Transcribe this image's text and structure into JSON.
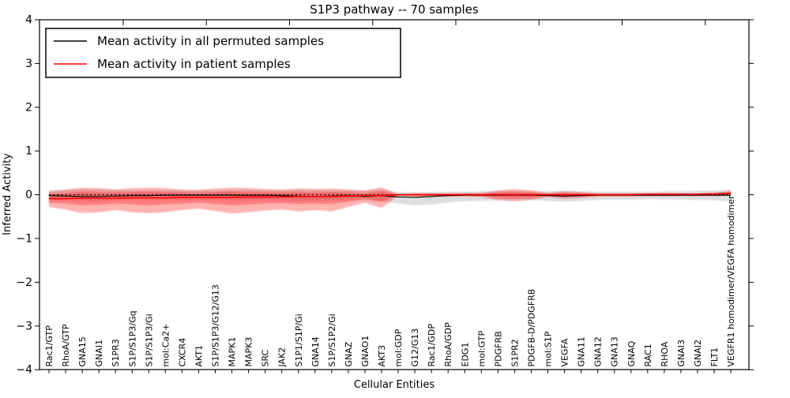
{
  "chart_data": {
    "type": "line",
    "title": "S1P3 pathway -- 70 samples",
    "xlabel": "Cellular Entities",
    "ylabel": "Inferred Activity",
    "ylim": [
      -4,
      4
    ],
    "yticks": [
      -4,
      -3,
      -2,
      -1,
      0,
      1,
      2,
      3,
      4
    ],
    "grid": false,
    "legend_position": "upper left",
    "legend": [
      {
        "label": "Mean activity in all permuted samples",
        "color": "#000000"
      },
      {
        "label": "Mean activity in patient samples",
        "color": "#ff0000"
      }
    ],
    "zero_line": {
      "value": 0,
      "style": "dotted",
      "color": "#000000"
    },
    "categories": [
      "Rac1/GTP",
      "RhoA/GTP",
      "GNA15",
      "GNAI1",
      "S1PR3",
      "S1P/S1P3/Gq",
      "S1P/S1P3/Gi",
      "mol:Ca2+",
      "CXCR4",
      "AKT1",
      "S1P/S1P3/G12/G13",
      "MAPK1",
      "MAPK3",
      "SRC",
      "JAK2",
      "S1P1/S1P/Gi",
      "GNA14",
      "S1P/S1P2/Gi",
      "GNAZ",
      "GNAO1",
      "AKT3",
      "mol:GDP",
      "G12/G13",
      "Rac1/GDP",
      "RhoA/GDP",
      "EDG1",
      "mol:GTP",
      "PDGFRB",
      "S1PR2",
      "PDGFB-D/PDGFRB",
      "mol:S1P",
      "VEGFA",
      "GNA11",
      "GNA12",
      "GNA13",
      "GNAQ",
      "RAC1",
      "RHOA",
      "GNAI3",
      "GNAI2",
      "FLT1",
      "VEGFR1 homodimer/VEGFA homodimer"
    ],
    "series": [
      {
        "name": "Mean activity in all permuted samples",
        "color": "#000000",
        "values": [
          -0.02,
          -0.03,
          -0.04,
          -0.04,
          -0.03,
          -0.02,
          -0.02,
          -0.01,
          -0.01,
          -0.01,
          -0.01,
          -0.01,
          -0.01,
          -0.01,
          -0.02,
          -0.03,
          -0.04,
          -0.03,
          -0.02,
          -0.04,
          -0.02,
          -0.05,
          -0.06,
          -0.04,
          -0.02,
          -0.01,
          -0.01,
          -0.01,
          -0.01,
          -0.01,
          -0.02,
          -0.03,
          -0.02,
          -0.01,
          -0.01,
          -0.01,
          -0.01,
          -0.01,
          -0.01,
          -0.01,
          -0.01,
          -0.01
        ]
      },
      {
        "name": "Mean activity in patient samples",
        "color": "#ff0000",
        "values": [
          -0.09,
          -0.09,
          -0.08,
          -0.08,
          -0.08,
          -0.07,
          -0.07,
          -0.07,
          -0.06,
          -0.06,
          -0.06,
          -0.06,
          -0.05,
          -0.05,
          -0.05,
          -0.04,
          -0.04,
          -0.04,
          -0.03,
          -0.02,
          -0.02,
          0,
          0,
          0,
          0,
          0,
          0,
          0,
          0,
          0,
          0,
          0,
          0,
          0,
          0,
          0,
          0.01,
          0.01,
          0.01,
          0.01,
          0.02,
          0.03
        ]
      }
    ],
    "bands": {
      "permuted": {
        "color": "#000000",
        "opacity": 0.13,
        "upper": [
          0.1,
          0.11,
          0.12,
          0.12,
          0.11,
          0.1,
          0.1,
          0.1,
          0.1,
          0.1,
          0.1,
          0.11,
          0.11,
          0.1,
          0.1,
          0.11,
          0.11,
          0.1,
          0.1,
          0.09,
          0.12,
          0.06,
          0.06,
          0.06,
          0.07,
          0.07,
          0.08,
          0.09,
          0.09,
          0.08,
          0.08,
          0.09,
          0.08,
          0.07,
          0.07,
          0.07,
          0.07,
          0.08,
          0.08,
          0.09,
          0.1,
          0.12
        ],
        "lower": [
          -0.12,
          -0.13,
          -0.14,
          -0.14,
          -0.13,
          -0.12,
          -0.12,
          -0.12,
          -0.12,
          -0.12,
          -0.12,
          -0.13,
          -0.13,
          -0.12,
          -0.12,
          -0.14,
          -0.14,
          -0.13,
          -0.12,
          -0.13,
          -0.15,
          -0.2,
          -0.24,
          -0.22,
          -0.18,
          -0.15,
          -0.14,
          -0.13,
          -0.12,
          -0.12,
          -0.14,
          -0.16,
          -0.14,
          -0.12,
          -0.11,
          -0.11,
          -0.1,
          -0.11,
          -0.11,
          -0.12,
          -0.13,
          -0.15
        ]
      },
      "patient_outer": {
        "color": "#ff0000",
        "opacity": 0.3,
        "upper": [
          0.08,
          0.12,
          0.16,
          0.15,
          0.12,
          0.15,
          0.16,
          0.15,
          0.12,
          0.11,
          0.14,
          0.16,
          0.15,
          0.13,
          0.12,
          0.14,
          0.13,
          0.14,
          0.12,
          0.1,
          0.17,
          0.01,
          0.03,
          0.03,
          0.03,
          0.03,
          0.04,
          0.1,
          0.13,
          0.1,
          0.04,
          0.08,
          0.06,
          0.03,
          0.03,
          0.03,
          0.03,
          0.04,
          0.03,
          0.03,
          0.04,
          0.09
        ],
        "lower": [
          -0.28,
          -0.34,
          -0.42,
          -0.4,
          -0.35,
          -0.4,
          -0.42,
          -0.4,
          -0.35,
          -0.32,
          -0.37,
          -0.43,
          -0.4,
          -0.36,
          -0.34,
          -0.38,
          -0.35,
          -0.38,
          -0.28,
          -0.18,
          -0.3,
          -0.02,
          -0.04,
          -0.04,
          -0.04,
          -0.04,
          -0.05,
          -0.12,
          -0.15,
          -0.12,
          -0.05,
          -0.09,
          -0.07,
          -0.04,
          -0.04,
          -0.04,
          -0.03,
          -0.04,
          -0.03,
          -0.03,
          -0.03,
          -0.02
        ]
      },
      "patient_inner": {
        "color": "#ff0000",
        "opacity": 0.3,
        "upper": [
          0.02,
          0.04,
          0.07,
          0.06,
          0.05,
          0.06,
          0.07,
          0.06,
          0.05,
          0.04,
          0.06,
          0.07,
          0.06,
          0.05,
          0.05,
          0.06,
          0.05,
          0.06,
          0.05,
          0.03,
          0.08,
          0.005,
          0.015,
          0.015,
          0.015,
          0.015,
          0.02,
          0.05,
          0.06,
          0.05,
          0.02,
          0.04,
          0.03,
          0.015,
          0.015,
          0.015,
          0.02,
          0.02,
          0.02,
          0.02,
          0.03,
          0.06
        ],
        "lower": [
          -0.18,
          -0.2,
          -0.24,
          -0.23,
          -0.2,
          -0.22,
          -0.24,
          -0.22,
          -0.2,
          -0.18,
          -0.21,
          -0.24,
          -0.22,
          -0.2,
          -0.19,
          -0.21,
          -0.2,
          -0.21,
          -0.16,
          -0.09,
          -0.16,
          -0.01,
          -0.02,
          -0.02,
          -0.02,
          -0.02,
          -0.03,
          -0.07,
          -0.08,
          -0.07,
          -0.03,
          -0.05,
          -0.04,
          -0.02,
          -0.02,
          -0.02,
          -0.01,
          -0.02,
          -0.01,
          -0.01,
          -0.01,
          0.0
        ]
      }
    }
  }
}
